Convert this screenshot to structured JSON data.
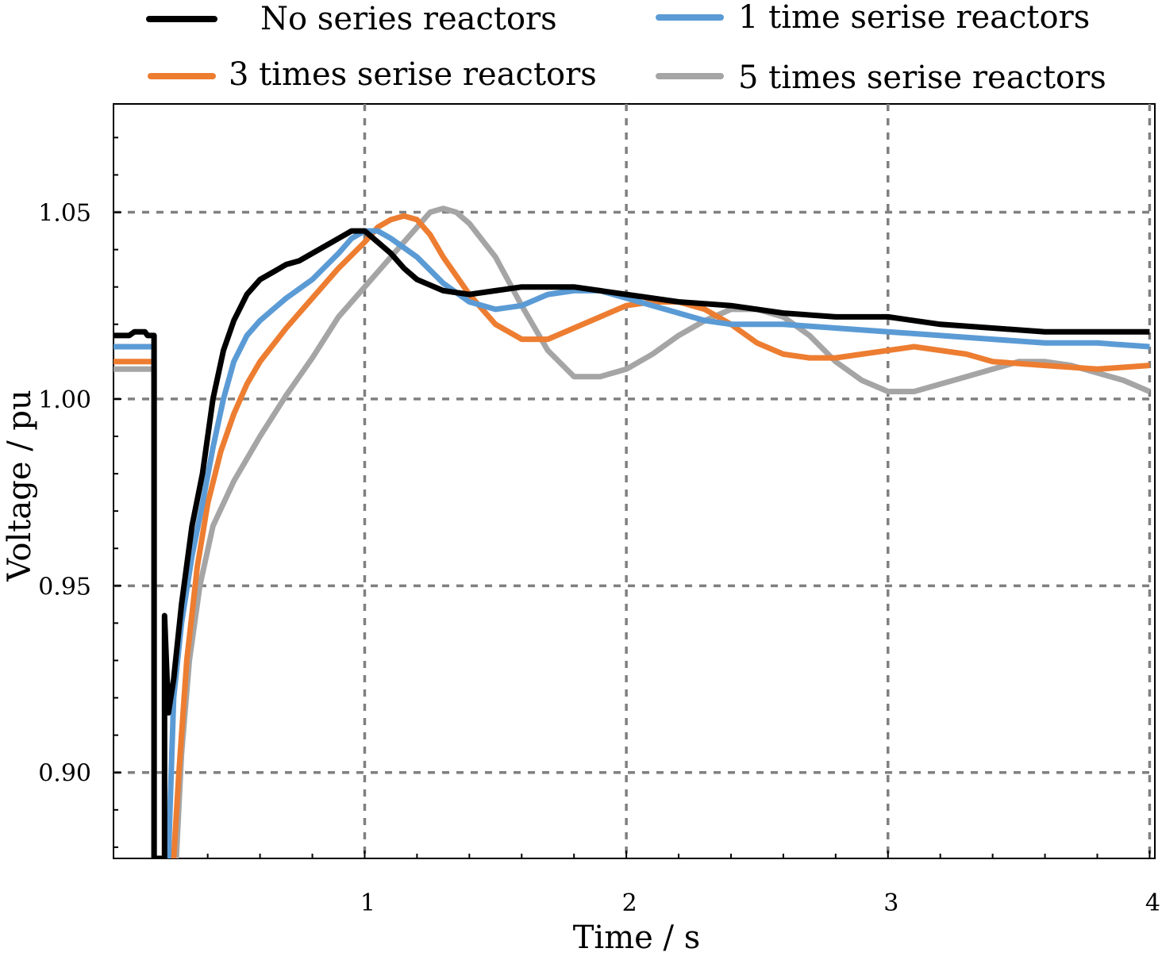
{
  "chart_data": {
    "type": "line",
    "xlabel": "Time / s",
    "ylabel": "Voltage / pu",
    "xlim": [
      0.04,
      4.02
    ],
    "ylim": [
      0.877,
      1.079
    ],
    "grid": true,
    "legend_position": "top",
    "x_ticks": [
      {
        "value": 1,
        "label": "1"
      },
      {
        "value": 2,
        "label": "2"
      },
      {
        "value": 3,
        "label": "3"
      },
      {
        "value": 4,
        "label": "4"
      }
    ],
    "y_ticks": [
      {
        "value": 0.9,
        "label": "0.90"
      },
      {
        "value": 0.95,
        "label": "0.95"
      },
      {
        "value": 1.0,
        "label": "1.00"
      },
      {
        "value": 1.05,
        "label": "1.05"
      }
    ],
    "series": [
      {
        "name": "No series reactors",
        "color": "#000000",
        "points": [
          [
            0.04,
            1.017
          ],
          [
            0.1,
            1.017
          ],
          [
            0.12,
            1.018
          ],
          [
            0.16,
            1.018
          ],
          [
            0.17,
            1.017
          ],
          [
            0.195,
            1.017
          ],
          [
            0.195,
            0.877
          ],
          [
            0.235,
            0.877
          ],
          [
            0.235,
            0.942
          ],
          [
            0.25,
            0.916
          ],
          [
            0.27,
            0.925
          ],
          [
            0.3,
            0.945
          ],
          [
            0.34,
            0.966
          ],
          [
            0.38,
            0.98
          ],
          [
            0.42,
            1.0
          ],
          [
            0.46,
            1.013
          ],
          [
            0.5,
            1.021
          ],
          [
            0.55,
            1.028
          ],
          [
            0.6,
            1.032
          ],
          [
            0.65,
            1.034
          ],
          [
            0.7,
            1.036
          ],
          [
            0.75,
            1.037
          ],
          [
            0.8,
            1.039
          ],
          [
            0.85,
            1.041
          ],
          [
            0.9,
            1.043
          ],
          [
            0.95,
            1.045
          ],
          [
            1.0,
            1.045
          ],
          [
            1.05,
            1.042
          ],
          [
            1.1,
            1.039
          ],
          [
            1.15,
            1.035
          ],
          [
            1.2,
            1.032
          ],
          [
            1.3,
            1.029
          ],
          [
            1.4,
            1.028
          ],
          [
            1.5,
            1.029
          ],
          [
            1.6,
            1.03
          ],
          [
            1.7,
            1.03
          ],
          [
            1.8,
            1.03
          ],
          [
            1.9,
            1.029
          ],
          [
            2.0,
            1.028
          ],
          [
            2.2,
            1.026
          ],
          [
            2.4,
            1.025
          ],
          [
            2.6,
            1.023
          ],
          [
            2.8,
            1.022
          ],
          [
            3.0,
            1.022
          ],
          [
            3.2,
            1.02
          ],
          [
            3.4,
            1.019
          ],
          [
            3.6,
            1.018
          ],
          [
            3.8,
            1.018
          ],
          [
            4.0,
            1.018
          ]
        ]
      },
      {
        "name": "1 time serise reactors",
        "color": "#5b9bd5",
        "points": [
          [
            0.04,
            1.014
          ],
          [
            0.195,
            1.014
          ],
          [
            0.195,
            0.877
          ],
          [
            0.25,
            0.877
          ],
          [
            0.27,
            0.92
          ],
          [
            0.3,
            0.94
          ],
          [
            0.34,
            0.958
          ],
          [
            0.38,
            0.972
          ],
          [
            0.42,
            0.987
          ],
          [
            0.46,
            1.0
          ],
          [
            0.5,
            1.01
          ],
          [
            0.55,
            1.017
          ],
          [
            0.6,
            1.021
          ],
          [
            0.65,
            1.024
          ],
          [
            0.7,
            1.027
          ],
          [
            0.8,
            1.032
          ],
          [
            0.9,
            1.039
          ],
          [
            0.95,
            1.043
          ],
          [
            1.0,
            1.045
          ],
          [
            1.05,
            1.045
          ],
          [
            1.1,
            1.043
          ],
          [
            1.2,
            1.038
          ],
          [
            1.3,
            1.031
          ],
          [
            1.4,
            1.026
          ],
          [
            1.5,
            1.024
          ],
          [
            1.6,
            1.025
          ],
          [
            1.7,
            1.028
          ],
          [
            1.8,
            1.029
          ],
          [
            1.9,
            1.029
          ],
          [
            2.0,
            1.027
          ],
          [
            2.1,
            1.025
          ],
          [
            2.2,
            1.023
          ],
          [
            2.3,
            1.021
          ],
          [
            2.4,
            1.02
          ],
          [
            2.6,
            1.02
          ],
          [
            2.8,
            1.019
          ],
          [
            3.0,
            1.018
          ],
          [
            3.2,
            1.017
          ],
          [
            3.4,
            1.016
          ],
          [
            3.6,
            1.015
          ],
          [
            3.8,
            1.015
          ],
          [
            4.0,
            1.014
          ]
        ]
      },
      {
        "name": "3 times serise reactors",
        "color": "#ed7d31",
        "points": [
          [
            0.04,
            1.01
          ],
          [
            0.195,
            1.01
          ],
          [
            0.195,
            0.877
          ],
          [
            0.27,
            0.877
          ],
          [
            0.29,
            0.9
          ],
          [
            0.32,
            0.93
          ],
          [
            0.36,
            0.955
          ],
          [
            0.4,
            0.972
          ],
          [
            0.45,
            0.986
          ],
          [
            0.5,
            0.996
          ],
          [
            0.55,
            1.004
          ],
          [
            0.6,
            1.01
          ],
          [
            0.7,
            1.019
          ],
          [
            0.8,
            1.027
          ],
          [
            0.9,
            1.035
          ],
          [
            1.0,
            1.042
          ],
          [
            1.05,
            1.046
          ],
          [
            1.1,
            1.048
          ],
          [
            1.15,
            1.049
          ],
          [
            1.2,
            1.048
          ],
          [
            1.25,
            1.044
          ],
          [
            1.3,
            1.038
          ],
          [
            1.4,
            1.028
          ],
          [
            1.5,
            1.02
          ],
          [
            1.6,
            1.016
          ],
          [
            1.7,
            1.016
          ],
          [
            1.8,
            1.019
          ],
          [
            1.9,
            1.022
          ],
          [
            2.0,
            1.025
          ],
          [
            2.1,
            1.026
          ],
          [
            2.2,
            1.026
          ],
          [
            2.3,
            1.024
          ],
          [
            2.4,
            1.02
          ],
          [
            2.5,
            1.015
          ],
          [
            2.6,
            1.012
          ],
          [
            2.7,
            1.011
          ],
          [
            2.8,
            1.011
          ],
          [
            2.9,
            1.012
          ],
          [
            3.0,
            1.013
          ],
          [
            3.1,
            1.014
          ],
          [
            3.2,
            1.013
          ],
          [
            3.3,
            1.012
          ],
          [
            3.4,
            1.01
          ],
          [
            3.6,
            1.009
          ],
          [
            3.8,
            1.008
          ],
          [
            4.0,
            1.009
          ]
        ]
      },
      {
        "name": "5 times serise reactors",
        "color": "#a5a5a5",
        "points": [
          [
            0.04,
            1.008
          ],
          [
            0.195,
            1.008
          ],
          [
            0.195,
            0.877
          ],
          [
            0.28,
            0.877
          ],
          [
            0.3,
            0.905
          ],
          [
            0.33,
            0.93
          ],
          [
            0.37,
            0.95
          ],
          [
            0.42,
            0.966
          ],
          [
            0.5,
            0.978
          ],
          [
            0.6,
            0.99
          ],
          [
            0.7,
            1.001
          ],
          [
            0.8,
            1.011
          ],
          [
            0.9,
            1.022
          ],
          [
            1.0,
            1.03
          ],
          [
            1.1,
            1.038
          ],
          [
            1.2,
            1.046
          ],
          [
            1.25,
            1.05
          ],
          [
            1.3,
            1.051
          ],
          [
            1.35,
            1.05
          ],
          [
            1.4,
            1.047
          ],
          [
            1.5,
            1.038
          ],
          [
            1.6,
            1.025
          ],
          [
            1.7,
            1.013
          ],
          [
            1.8,
            1.006
          ],
          [
            1.9,
            1.006
          ],
          [
            2.0,
            1.008
          ],
          [
            2.1,
            1.012
          ],
          [
            2.2,
            1.017
          ],
          [
            2.3,
            1.021
          ],
          [
            2.4,
            1.024
          ],
          [
            2.5,
            1.024
          ],
          [
            2.6,
            1.022
          ],
          [
            2.7,
            1.017
          ],
          [
            2.8,
            1.01
          ],
          [
            2.9,
            1.005
          ],
          [
            3.0,
            1.002
          ],
          [
            3.1,
            1.002
          ],
          [
            3.2,
            1.004
          ],
          [
            3.3,
            1.006
          ],
          [
            3.4,
            1.008
          ],
          [
            3.5,
            1.01
          ],
          [
            3.6,
            1.01
          ],
          [
            3.7,
            1.009
          ],
          [
            3.8,
            1.007
          ],
          [
            3.9,
            1.005
          ],
          [
            4.0,
            1.002
          ]
        ]
      }
    ]
  }
}
